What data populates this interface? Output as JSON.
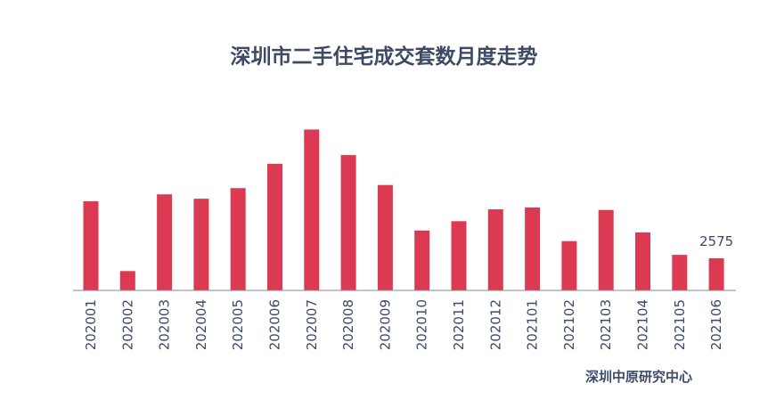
{
  "chart_data": {
    "type": "bar",
    "title": "深圳市二手住宅成交套数月度走势",
    "source": "深圳中原研究中心",
    "categories": [
      "202001",
      "202002",
      "202003",
      "202004",
      "202005",
      "202006",
      "202007",
      "202008",
      "202009",
      "202010",
      "202011",
      "202012",
      "202101",
      "202102",
      "202103",
      "202104",
      "202105",
      "202106"
    ],
    "values": [
      7150,
      1550,
      7700,
      7350,
      8200,
      10150,
      12900,
      10850,
      8450,
      4800,
      5550,
      6500,
      6650,
      3950,
      6450,
      4650,
      2850,
      2575
    ],
    "data_labels": [
      {
        "index": 17,
        "text": "2575"
      }
    ],
    "ylim": [
      0,
      14000
    ],
    "grid": false,
    "legend": "none",
    "bar_color": "#dc3a53",
    "axis_color": "#888888",
    "text_color": "#3d4a66"
  }
}
